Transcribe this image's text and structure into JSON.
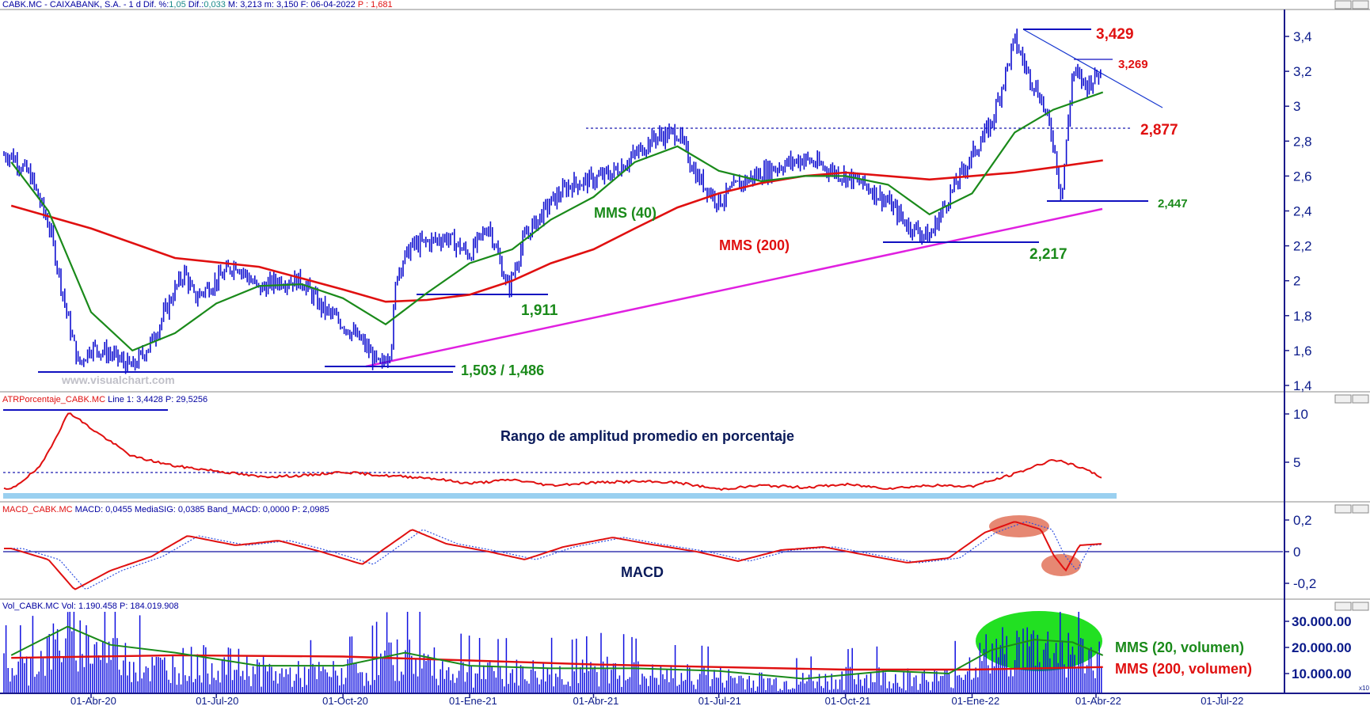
{
  "colors": {
    "price": "#1010d0",
    "mms40": "#1a8a1a",
    "mms200": "#e01010",
    "magenta_line": "#e020e0",
    "axis_text": "#0a1a8a",
    "header_text": "#0000a0",
    "header_value": "#1a8a8a",
    "header_red": "#e01010",
    "volume_bar": "#1010e0",
    "volume_mms20": "#1a8a1a",
    "volume_mms200": "#e01010",
    "green_blob": "#22e022",
    "salmon_blob": "#e06a50",
    "atr_band": "#9ad0f0"
  },
  "header": {
    "prefix": "CABK.MC - CAIXABANK, S.A. -  1 d  Dif. %:",
    "dif_pct": "1,05",
    "dif_label": " Dif.:",
    "dif": "0,033",
    "rest": " M: 3,213  m: 3,150  F: 06-04-2022  ",
    "p_label": "P : 1,681"
  },
  "watermark": "www.visualchart.com",
  "x_axis": {
    "labels": [
      "01-Abr-20",
      "01-Jul-20",
      "01-Oct-20",
      "01-Ene-21",
      "01-Abr-21",
      "01-Jul-21",
      "01-Oct-21",
      "01-Ene-22",
      "01-Abr-22",
      "01-Jul-22"
    ]
  },
  "price_panel": {
    "ticks": [
      "3,4",
      "3,2",
      "3",
      "2,8",
      "2,6",
      "2,4",
      "2,2",
      "2",
      "1,8",
      "1,6",
      "1,4"
    ],
    "annotations": {
      "a3429": "3,429",
      "a3269": "3,269",
      "a2877": "2,877",
      "a2447": "2,447",
      "a2217": "2,217",
      "a1911": "1,911",
      "a1503": "1,503 / 1,486",
      "mms40": "MMS (40)",
      "mms200": "MMS (200)"
    }
  },
  "atr_panel": {
    "header_name": "ATRPorcentaje_CABK.MC",
    "header_values": " Line 1: 3,4428  P: 29,5256",
    "title": "Rango de amplitud promedio en porcentaje",
    "ticks": [
      "10",
      "5"
    ]
  },
  "macd_panel": {
    "header_name": "MACD_CABK.MC",
    "header_values": " MACD: 0,0455  MediaSIG: 0,0385  Band_MACD: 0,0000  P: 2,0985",
    "title": "MACD",
    "ticks": [
      "0,2",
      "0",
      "-0,2"
    ]
  },
  "volume_panel": {
    "header_name": "Vol_CABK.MC",
    "header_values": " Vol: 1.190.458  P: 184.019.908",
    "ticks": [
      "30.000.00",
      "20.000.00",
      "10.000.00"
    ],
    "label_mms20": "MMS (20, volumen)",
    "label_mms200": "MMS (200, volumen)",
    "corner": "x10"
  },
  "chart_data": [
    {
      "type": "line",
      "series_role": "price",
      "x": [
        "2020-02-03",
        "2020-02-17",
        "2020-03-02",
        "2020-03-16",
        "2020-03-23",
        "2020-04-01",
        "2020-04-15",
        "2020-05-01",
        "2020-05-15",
        "2020-06-01",
        "2020-06-08",
        "2020-06-15",
        "2020-07-01",
        "2020-07-15",
        "2020-08-01",
        "2020-08-15",
        "2020-09-01",
        "2020-09-15",
        "2020-10-01",
        "2020-10-15",
        "2020-10-28",
        "2020-11-05",
        "2020-11-09",
        "2020-11-20",
        "2020-12-01",
        "2020-12-15",
        "2021-01-01",
        "2021-01-15",
        "2021-01-29",
        "2021-02-10",
        "2021-03-01",
        "2021-03-15",
        "2021-04-01",
        "2021-04-15",
        "2021-05-01",
        "2021-05-15",
        "2021-06-01",
        "2021-06-15",
        "2021-07-01",
        "2021-07-15",
        "2021-08-01",
        "2021-08-15",
        "2021-09-01",
        "2021-09-15",
        "2021-10-01",
        "2021-10-15",
        "2021-11-01",
        "2021-11-15",
        "2021-12-01",
        "2021-12-15",
        "2022-01-01",
        "2022-01-15",
        "2022-02-01",
        "2022-02-10",
        "2022-02-20",
        "2022-03-01",
        "2022-03-07",
        "2022-03-15",
        "2022-03-25",
        "2022-04-06"
      ],
      "y": [
        2.72,
        2.6,
        2.3,
        1.75,
        1.52,
        1.62,
        1.58,
        1.5,
        1.65,
        1.95,
        2.05,
        1.9,
        2.0,
        2.1,
        1.95,
        2.0,
        2.0,
        1.85,
        1.75,
        1.65,
        1.5,
        1.62,
        2.05,
        2.2,
        2.22,
        2.25,
        2.15,
        2.32,
        1.95,
        2.25,
        2.45,
        2.55,
        2.58,
        2.62,
        2.72,
        2.82,
        2.85,
        2.6,
        2.45,
        2.55,
        2.62,
        2.66,
        2.7,
        2.65,
        2.6,
        2.55,
        2.45,
        2.32,
        2.25,
        2.48,
        2.72,
        2.9,
        3.38,
        3.2,
        3.05,
        2.8,
        2.47,
        3.2,
        3.12,
        3.21
      ]
    },
    {
      "type": "line",
      "series_role": "mms40",
      "x": [
        "2020-02-03",
        "2020-03-01",
        "2020-04-01",
        "2020-05-01",
        "2020-06-01",
        "2020-07-01",
        "2020-08-01",
        "2020-09-01",
        "2020-10-01",
        "2020-11-01",
        "2020-12-01",
        "2021-01-01",
        "2021-02-01",
        "2021-03-01",
        "2021-04-01",
        "2021-05-01",
        "2021-06-01",
        "2021-07-01",
        "2021-08-01",
        "2021-09-01",
        "2021-10-01",
        "2021-11-01",
        "2021-12-01",
        "2022-01-01",
        "2022-02-01",
        "2022-03-01",
        "2022-04-06"
      ],
      "y": [
        2.68,
        2.4,
        1.82,
        1.6,
        1.7,
        1.87,
        1.97,
        1.98,
        1.9,
        1.75,
        1.93,
        2.1,
        2.18,
        2.35,
        2.48,
        2.68,
        2.77,
        2.63,
        2.57,
        2.6,
        2.6,
        2.55,
        2.38,
        2.5,
        2.85,
        2.98,
        3.08
      ]
    },
    {
      "type": "line",
      "series_role": "mms200",
      "x": [
        "2020-02-03",
        "2020-04-01",
        "2020-06-01",
        "2020-08-01",
        "2020-10-01",
        "2020-11-01",
        "2020-12-01",
        "2021-01-01",
        "2021-02-01",
        "2021-03-01",
        "2021-04-01",
        "2021-05-01",
        "2021-06-01",
        "2021-07-01",
        "2021-08-01",
        "2021-09-01",
        "2021-10-01",
        "2021-11-01",
        "2021-12-01",
        "2022-01-01",
        "2022-02-01",
        "2022-03-01",
        "2022-04-06"
      ],
      "y": [
        2.43,
        2.3,
        2.13,
        2.08,
        1.95,
        1.88,
        1.89,
        1.92,
        2.0,
        2.1,
        2.18,
        2.3,
        2.42,
        2.5,
        2.56,
        2.6,
        2.62,
        2.6,
        2.58,
        2.6,
        2.62,
        2.65,
        2.69
      ]
    },
    {
      "type": "line",
      "series_role": "atr",
      "x": [
        "2020-02-03",
        "2020-02-24",
        "2020-03-16",
        "2020-04-01",
        "2020-05-01",
        "2020-06-01",
        "2020-07-01",
        "2020-08-01",
        "2020-09-01",
        "2020-10-01",
        "2020-11-01",
        "2020-12-01",
        "2021-01-01",
        "2021-02-01",
        "2021-03-01",
        "2021-04-01",
        "2021-05-01",
        "2021-06-01",
        "2021-07-01",
        "2021-08-01",
        "2021-09-01",
        "2021-10-01",
        "2021-11-01",
        "2021-12-01",
        "2022-01-01",
        "2022-02-01",
        "2022-03-01",
        "2022-03-20",
        "2022-04-06"
      ],
      "y": [
        2.2,
        4.5,
        10.2,
        8.5,
        5.6,
        4.6,
        4.1,
        3.5,
        3.6,
        4.0,
        3.6,
        3.4,
        2.8,
        3.2,
        2.6,
        2.9,
        3.0,
        2.9,
        2.2,
        2.6,
        2.4,
        2.7,
        2.3,
        2.6,
        2.5,
        3.8,
        5.3,
        4.5,
        3.4
      ]
    },
    {
      "type": "line",
      "series_role": "macd",
      "x": [
        "2020-02-03",
        "2020-03-01",
        "2020-03-20",
        "2020-04-15",
        "2020-05-15",
        "2020-06-10",
        "2020-07-15",
        "2020-08-15",
        "2020-09-15",
        "2020-10-15",
        "2020-11-20",
        "2020-12-15",
        "2021-01-15",
        "2021-02-10",
        "2021-03-10",
        "2021-04-15",
        "2021-05-10",
        "2021-06-15",
        "2021-07-15",
        "2021-08-15",
        "2021-09-15",
        "2021-10-15",
        "2021-11-15",
        "2021-12-15",
        "2022-01-10",
        "2022-02-01",
        "2022-02-20",
        "2022-03-01",
        "2022-03-10",
        "2022-03-20",
        "2022-04-06"
      ],
      "y": [
        0.02,
        -0.05,
        -0.24,
        -0.12,
        -0.03,
        0.1,
        0.04,
        0.07,
        0.0,
        -0.08,
        0.14,
        0.05,
        0.0,
        -0.05,
        0.03,
        0.09,
        0.05,
        0.0,
        -0.06,
        0.01,
        0.03,
        -0.02,
        -0.07,
        -0.04,
        0.12,
        0.19,
        0.14,
        -0.02,
        -0.12,
        0.04,
        0.05
      ]
    },
    {
      "type": "bar",
      "series_role": "volume",
      "x": [
        "2020-02",
        "2020-03",
        "2020-04",
        "2020-05",
        "2020-06",
        "2020-07",
        "2020-08",
        "2020-09",
        "2020-10",
        "2020-11",
        "2020-12",
        "2021-01",
        "2021-02",
        "2021-03",
        "2021-04",
        "2021-05",
        "2021-06",
        "2021-07",
        "2021-08",
        "2021-09",
        "2021-10",
        "2021-11",
        "2021-12",
        "2022-01",
        "2022-02",
        "2022-03",
        "2022-04"
      ],
      "y": [
        15000000,
        30000000,
        22000000,
        15000000,
        17000000,
        16000000,
        12000000,
        12000000,
        13000000,
        21000000,
        14000000,
        12000000,
        13000000,
        12000000,
        14000000,
        11000000,
        11000000,
        10000000,
        8000000,
        9000000,
        11000000,
        10000000,
        10000000,
        22000000,
        25000000,
        22000000,
        17000000
      ]
    },
    {
      "type": "line",
      "series_role": "volume_mms20",
      "x": [
        "2020-02-03",
        "2020-03-15",
        "2020-04-15",
        "2020-06-01",
        "2020-08-01",
        "2020-10-01",
        "2020-11-15",
        "2021-01-01",
        "2021-03-01",
        "2021-05-01",
        "2021-07-01",
        "2021-09-01",
        "2021-11-01",
        "2021-12-15",
        "2022-01-15",
        "2022-02-15",
        "2022-03-15",
        "2022-04-06"
      ],
      "y": [
        17000000,
        28000000,
        21000000,
        18000000,
        13000000,
        13000000,
        18000000,
        13000000,
        12000000,
        12000000,
        11000000,
        8000000,
        11000000,
        10000000,
        19000000,
        23000000,
        22000000,
        17000000
      ]
    },
    {
      "type": "line",
      "series_role": "volume_mms200",
      "x": [
        "2020-02-03",
        "2020-06-01",
        "2020-10-01",
        "2021-01-01",
        "2021-04-01",
        "2021-07-01",
        "2021-10-01",
        "2022-01-01",
        "2022-04-06"
      ],
      "y": [
        16000000,
        17000000,
        16500000,
        15000000,
        13500000,
        12500000,
        11500000,
        11500000,
        12500000
      ]
    }
  ]
}
